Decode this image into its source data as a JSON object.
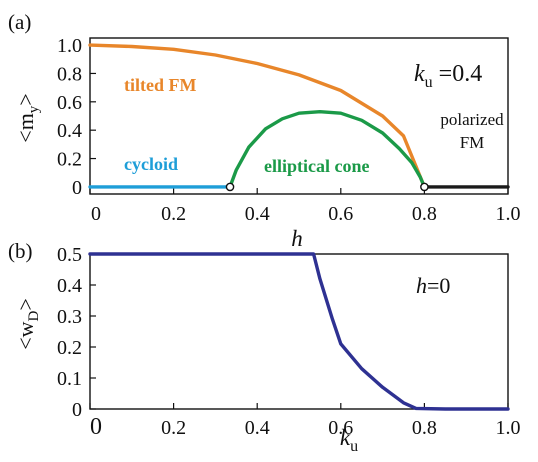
{
  "panels": {
    "a": {
      "label": "(a)"
    },
    "b": {
      "label": "(b)"
    }
  },
  "colors": {
    "tilted_fm": "#E8862A",
    "cycloid": "#1E9ED8",
    "elliptical_cone": "#1B9A48",
    "polarized_fm": "#1a1a1a",
    "wd": "#2E3192"
  },
  "chart_data": [
    {
      "type": "line",
      "panel": "(a)",
      "xlabel": "h",
      "ylabel": "<m_y>",
      "xlim": [
        0,
        1.0
      ],
      "ylim": [
        -0.05,
        1.05
      ],
      "xticks": [
        "0",
        "0.2",
        "0.4",
        "0.6",
        "0.8",
        "1.0"
      ],
      "yticks": [
        "0",
        "0.2",
        "0.4",
        "0.6",
        "0.8",
        "1.0"
      ],
      "annotations": {
        "param_symbol": "k",
        "param_sub": "u",
        "param_value": " =0.4",
        "tilted_fm": "tilted FM",
        "cycloid": "cycloid",
        "elliptical_cone": "elliptical cone",
        "polarized_line1": "polarized",
        "polarized_line2": "FM"
      },
      "series": [
        {
          "name": "tilted FM",
          "color": "#E8862A",
          "x": [
            0,
            0.1,
            0.2,
            0.3,
            0.4,
            0.5,
            0.6,
            0.7,
            0.75,
            0.8
          ],
          "y": [
            1.0,
            0.99,
            0.97,
            0.93,
            0.87,
            0.79,
            0.68,
            0.5,
            0.36,
            0.0
          ]
        },
        {
          "name": "cycloid",
          "color": "#1E9ED8",
          "x": [
            0,
            0.1,
            0.2,
            0.3,
            0.335
          ],
          "y": [
            0,
            0,
            0,
            0,
            0
          ]
        },
        {
          "name": "elliptical cone",
          "color": "#1B9A48",
          "x": [
            0.335,
            0.35,
            0.38,
            0.42,
            0.46,
            0.5,
            0.55,
            0.6,
            0.65,
            0.7,
            0.74,
            0.77,
            0.79,
            0.8
          ],
          "y": [
            0,
            0.12,
            0.28,
            0.41,
            0.48,
            0.52,
            0.53,
            0.52,
            0.47,
            0.38,
            0.27,
            0.17,
            0.07,
            0
          ]
        },
        {
          "name": "polarized FM",
          "color": "#1a1a1a",
          "x": [
            0.8,
            0.9,
            1.0
          ],
          "y": [
            0,
            0,
            0
          ]
        }
      ],
      "markers": [
        {
          "x": 0.335,
          "y": 0
        },
        {
          "x": 0.8,
          "y": 0
        }
      ]
    },
    {
      "type": "line",
      "panel": "(b)",
      "xlabel": "k_u",
      "ylabel": "<w_D>",
      "xlim": [
        0,
        1.0
      ],
      "ylim": [
        0,
        0.5
      ],
      "xticks": [
        "0",
        "0.2",
        "0.4",
        "0.6",
        "0.8",
        "1.0"
      ],
      "yticks": [
        "0",
        "0.1",
        "0.2",
        "0.3",
        "0.4",
        "0.5"
      ],
      "annotations": {
        "param_symbol": "h",
        "param_value": "=0"
      },
      "series": [
        {
          "name": "",
          "color": "#2E3192",
          "x": [
            0,
            0.2,
            0.4,
            0.5,
            0.535,
            0.55,
            0.58,
            0.6,
            0.65,
            0.7,
            0.75,
            0.78,
            0.85,
            0.95,
            1.0
          ],
          "y": [
            0.5,
            0.5,
            0.5,
            0.5,
            0.5,
            0.42,
            0.29,
            0.21,
            0.13,
            0.07,
            0.02,
            0.002,
            0.0,
            0.0,
            0.0
          ]
        }
      ]
    }
  ]
}
